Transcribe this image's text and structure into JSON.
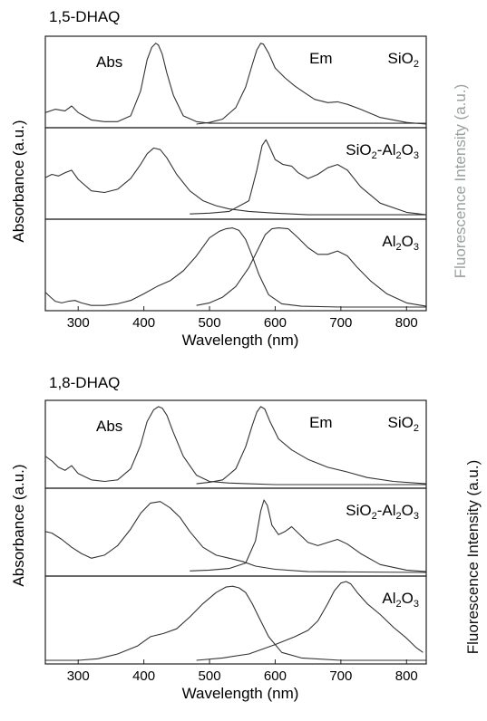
{
  "chart_data": [
    {
      "type": "line",
      "title": "1,5-DHAQ",
      "xlabel": "Wavelength (nm)",
      "ylabel_left": "Absorbance (a.u.)",
      "ylabel_right": "Fluorescence Intensity (a.u.)",
      "xlim": [
        250,
        830
      ],
      "x_ticks": [
        "300",
        "400",
        "500",
        "600",
        "700",
        "800"
      ],
      "abs_label": "Abs",
      "em_label": "Em",
      "panels": [
        {
          "substrate": "SiO2",
          "substrate_display": [
            [
              "SiO",
              ""
            ],
            [
              "2",
              "sub"
            ]
          ],
          "abs": {
            "x": [
              250,
              265,
              280,
              290,
              300,
              320,
              340,
              360,
              380,
              395,
              405,
              412,
              418,
              422,
              428,
              435,
              445,
              460,
              480,
              500,
              550,
              650,
              830
            ],
            "y": [
              0.14,
              0.18,
              0.16,
              0.22,
              0.14,
              0.05,
              0.03,
              0.03,
              0.1,
              0.4,
              0.78,
              0.93,
              0.98,
              0.96,
              0.85,
              0.62,
              0.35,
              0.1,
              0.03,
              0.01,
              0.01,
              0.01,
              0.01
            ]
          },
          "em": {
            "x": [
              480,
              500,
              520,
              540,
              555,
              565,
              572,
              578,
              582,
              590,
              600,
              615,
              630,
              645,
              660,
              680,
              695,
              710,
              730,
              760,
              800,
              830
            ],
            "y": [
              0.0,
              0.02,
              0.06,
              0.2,
              0.45,
              0.72,
              0.9,
              0.98,
              0.97,
              0.86,
              0.68,
              0.56,
              0.46,
              0.38,
              0.3,
              0.26,
              0.27,
              0.24,
              0.18,
              0.08,
              0.02,
              0.0
            ]
          }
        },
        {
          "substrate": "SiO2-Al2O3",
          "substrate_display": [
            [
              "SiO",
              ""
            ],
            [
              "2",
              "sub"
            ],
            [
              "-Al",
              ""
            ],
            [
              "2",
              "sub"
            ],
            [
              "O",
              ""
            ],
            [
              "3",
              "sub"
            ]
          ],
          "abs": {
            "x": [
              250,
              260,
              270,
              280,
              290,
              300,
              320,
              340,
              360,
              380,
              395,
              405,
              415,
              425,
              435,
              450,
              470,
              490,
              510,
              530,
              560,
              600,
              650,
              830
            ],
            "y": [
              0.46,
              0.5,
              0.48,
              0.52,
              0.55,
              0.44,
              0.3,
              0.28,
              0.32,
              0.45,
              0.62,
              0.75,
              0.82,
              0.8,
              0.7,
              0.5,
              0.3,
              0.18,
              0.12,
              0.08,
              0.05,
              0.03,
              0.01,
              0.01
            ]
          },
          "em": {
            "x": [
              470,
              500,
              530,
              560,
              572,
              580,
              586,
              592,
              600,
              612,
              625,
              635,
              650,
              665,
              680,
              695,
              710,
              730,
              760,
              800,
              830
            ],
            "y": [
              0.02,
              0.03,
              0.05,
              0.18,
              0.55,
              0.85,
              0.92,
              0.82,
              0.68,
              0.62,
              0.6,
              0.52,
              0.45,
              0.5,
              0.58,
              0.62,
              0.55,
              0.35,
              0.15,
              0.04,
              0.01
            ]
          }
        },
        {
          "substrate": "Al2O3",
          "substrate_display": [
            [
              "Al",
              ""
            ],
            [
              "2",
              "sub"
            ],
            [
              "O",
              ""
            ],
            [
              "3",
              "sub"
            ]
          ],
          "abs": {
            "x": [
              250,
              258,
              265,
              275,
              285,
              295,
              305,
              320,
              340,
              360,
              380,
              400,
              420,
              440,
              460,
              480,
              500,
              515,
              525,
              535,
              545,
              555,
              565,
              575,
              590,
              610,
              640,
              700,
              830
            ],
            "y": [
              0.18,
              0.12,
              0.07,
              0.05,
              0.07,
              0.08,
              0.05,
              0.02,
              0.02,
              0.04,
              0.08,
              0.16,
              0.25,
              0.32,
              0.44,
              0.62,
              0.84,
              0.92,
              0.95,
              0.96,
              0.93,
              0.82,
              0.62,
              0.4,
              0.15,
              0.04,
              0.01,
              0.0,
              0.0
            ]
          },
          "em": {
            "x": [
              480,
              500,
              520,
              540,
              560,
              575,
              585,
              595,
              605,
              620,
              635,
              650,
              665,
              680,
              695,
              710,
              725,
              745,
              770,
              800,
              830
            ],
            "y": [
              0.02,
              0.05,
              0.12,
              0.25,
              0.48,
              0.72,
              0.88,
              0.95,
              0.96,
              0.95,
              0.84,
              0.72,
              0.64,
              0.64,
              0.68,
              0.62,
              0.48,
              0.32,
              0.16,
              0.05,
              0.01
            ]
          }
        }
      ]
    },
    {
      "type": "line",
      "title": "1,8-DHAQ",
      "xlabel": "Wavelength (nm)",
      "ylabel_left": "Absorbance (a.u.)",
      "ylabel_right": "Fluorescence Intensity (a.u.)",
      "xlim": [
        250,
        830
      ],
      "x_ticks": [
        "300",
        "400",
        "500",
        "600",
        "700",
        "800"
      ],
      "abs_label": "Abs",
      "em_label": "Em",
      "panels": [
        {
          "substrate": "SiO2",
          "substrate_display": [
            [
              "SiO",
              ""
            ],
            [
              "2",
              "sub"
            ]
          ],
          "abs": {
            "x": [
              250,
              260,
              270,
              280,
              290,
              300,
              320,
              340,
              360,
              380,
              395,
              405,
              415,
              422,
              428,
              435,
              445,
              460,
              480,
              500,
              530,
              560,
              600,
              830
            ],
            "y": [
              0.36,
              0.3,
              0.22,
              0.18,
              0.24,
              0.14,
              0.06,
              0.04,
              0.06,
              0.2,
              0.5,
              0.8,
              0.95,
              0.99,
              0.97,
              0.88,
              0.66,
              0.36,
              0.12,
              0.04,
              0.02,
              0.01,
              0.0,
              0.0
            ]
          },
          "em": {
            "x": [
              480,
              500,
              520,
              540,
              555,
              565,
              572,
              578,
              584,
              592,
              605,
              625,
              650,
              680,
              710,
              740,
              780,
              830
            ],
            "y": [
              0.01,
              0.03,
              0.06,
              0.2,
              0.48,
              0.75,
              0.92,
              0.99,
              0.96,
              0.8,
              0.58,
              0.44,
              0.32,
              0.22,
              0.16,
              0.09,
              0.04,
              0.01
            ]
          }
        },
        {
          "substrate": "SiO2-Al2O3",
          "substrate_display": [
            [
              "SiO",
              ""
            ],
            [
              "2",
              "sub"
            ],
            [
              "-Al",
              ""
            ],
            [
              "2",
              "sub"
            ],
            [
              "O",
              ""
            ],
            [
              "3",
              "sub"
            ]
          ],
          "abs": {
            "x": [
              250,
              260,
              275,
              290,
              305,
              320,
              340,
              360,
              380,
              395,
              410,
              425,
              440,
              455,
              470,
              490,
              510,
              530,
              550,
              570,
              600,
              650,
              830
            ],
            "y": [
              0.52,
              0.5,
              0.42,
              0.32,
              0.24,
              0.18,
              0.22,
              0.34,
              0.55,
              0.75,
              0.88,
              0.9,
              0.82,
              0.7,
              0.52,
              0.32,
              0.22,
              0.18,
              0.14,
              0.08,
              0.04,
              0.01,
              0.0
            ]
          },
          "em": {
            "x": [
              470,
              500,
              530,
              555,
              570,
              578,
              583,
              588,
              595,
              605,
              615,
              625,
              635,
              650,
              665,
              680,
              695,
              710,
              730,
              760,
              800,
              830
            ],
            "y": [
              0.02,
              0.03,
              0.05,
              0.12,
              0.4,
              0.78,
              0.92,
              0.85,
              0.6,
              0.48,
              0.52,
              0.58,
              0.5,
              0.38,
              0.34,
              0.38,
              0.42,
              0.36,
              0.24,
              0.1,
              0.03,
              0.01
            ]
          }
        },
        {
          "substrate": "Al2O3",
          "substrate_display": [
            [
              "Al",
              ""
            ],
            [
              "2",
              "sub"
            ],
            [
              "O",
              ""
            ],
            [
              "3",
              "sub"
            ]
          ],
          "abs": {
            "x": [
              250,
              270,
              300,
              330,
              360,
              390,
              410,
              430,
              450,
              470,
              490,
              510,
              525,
              535,
              545,
              555,
              565,
              575,
              590,
              610,
              640,
              700,
              830
            ],
            "y": [
              0.0,
              0.0,
              0.0,
              0.02,
              0.08,
              0.18,
              0.3,
              0.34,
              0.4,
              0.55,
              0.72,
              0.86,
              0.93,
              0.94,
              0.92,
              0.86,
              0.72,
              0.55,
              0.3,
              0.1,
              0.03,
              0.0,
              0.0
            ]
          },
          "em": {
            "x": [
              480,
              520,
              560,
              600,
              630,
              650,
              665,
              680,
              690,
              700,
              708,
              715,
              725,
              740,
              760,
              780,
              800,
              815,
              825
            ],
            "y": [
              0.0,
              0.03,
              0.08,
              0.2,
              0.3,
              0.38,
              0.5,
              0.72,
              0.88,
              0.98,
              1.0,
              0.97,
              0.86,
              0.72,
              0.58,
              0.42,
              0.28,
              0.16,
              0.1
            ]
          }
        }
      ]
    }
  ]
}
